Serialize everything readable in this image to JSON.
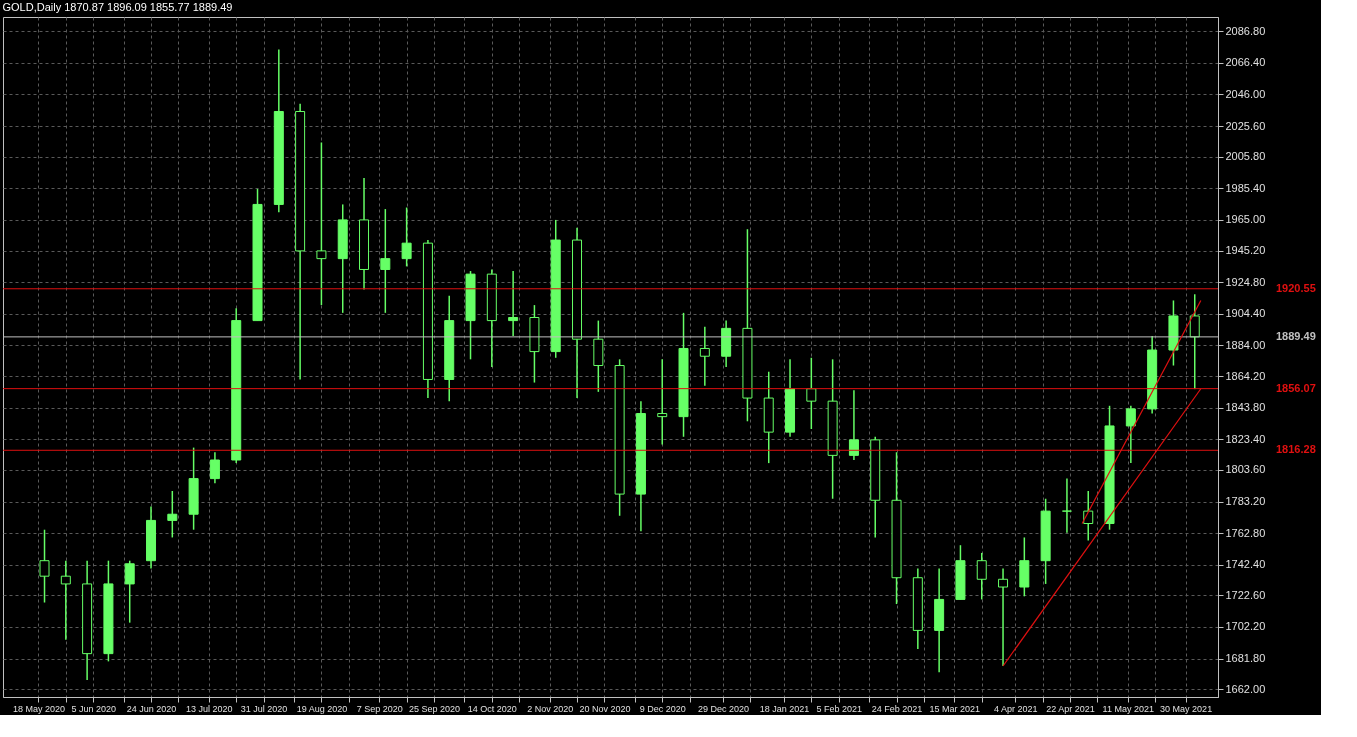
{
  "chart_data": {
    "type": "candlestick",
    "title": "GOLD,Daily  1870.87 1896.09 1855.77 1889.49",
    "color": "#66ff66",
    "x": [
      "2020-05-20",
      "2020-05-27",
      "2020-06-03",
      "2020-06-10",
      "2020-06-17",
      "2020-06-24",
      "2020-07-01",
      "2020-07-08",
      "2020-07-15",
      "2020-07-22",
      "2020-07-29",
      "2020-08-05",
      "2020-08-12",
      "2020-08-19",
      "2020-08-26",
      "2020-09-02",
      "2020-09-09",
      "2020-09-16",
      "2020-09-23",
      "2020-09-30",
      "2020-10-07",
      "2020-10-14",
      "2020-10-21",
      "2020-10-28",
      "2020-11-04",
      "2020-11-11",
      "2020-11-18",
      "2020-11-25",
      "2020-12-02",
      "2020-12-09",
      "2020-12-16",
      "2020-12-23",
      "2020-12-30",
      "2021-01-06",
      "2021-01-13",
      "2021-01-20",
      "2021-01-27",
      "2021-02-03",
      "2021-02-10",
      "2021-02-17",
      "2021-02-24",
      "2021-03-03",
      "2021-03-10",
      "2021-03-17",
      "2021-03-24",
      "2021-03-31",
      "2021-04-07",
      "2021-04-14",
      "2021-04-21",
      "2021-04-28",
      "2021-05-05",
      "2021-05-12",
      "2021-05-19",
      "2021-05-26",
      "2021-06-02"
    ],
    "ohlc": [
      [
        1745,
        1765,
        1718,
        1735
      ],
      [
        1735,
        1745,
        1694,
        1730
      ],
      [
        1730,
        1745,
        1668,
        1685
      ],
      [
        1685,
        1745,
        1680,
        1730
      ],
      [
        1730,
        1745,
        1705,
        1743
      ],
      [
        1745,
        1780,
        1740,
        1771
      ],
      [
        1771,
        1790,
        1760,
        1775
      ],
      [
        1775,
        1818,
        1765,
        1798
      ],
      [
        1798,
        1815,
        1795,
        1810
      ],
      [
        1810,
        1908,
        1808,
        1900
      ],
      [
        1900,
        1985,
        1900,
        1975
      ],
      [
        1975,
        2075,
        1970,
        2035
      ],
      [
        2035,
        2040,
        1862,
        1945
      ],
      [
        1945,
        2015,
        1910,
        1940
      ],
      [
        1940,
        1975,
        1905,
        1965
      ],
      [
        1965,
        1992,
        1920,
        1933
      ],
      [
        1933,
        1972,
        1905,
        1940
      ],
      [
        1940,
        1973,
        1935,
        1950
      ],
      [
        1950,
        1952,
        1850,
        1862
      ],
      [
        1862,
        1916,
        1848,
        1900
      ],
      [
        1900,
        1932,
        1875,
        1930
      ],
      [
        1930,
        1933,
        1870,
        1900
      ],
      [
        1900,
        1932,
        1890,
        1902
      ],
      [
        1902,
        1910,
        1860,
        1880
      ],
      [
        1880,
        1965,
        1876,
        1952
      ],
      [
        1952,
        1960,
        1850,
        1888
      ],
      [
        1888,
        1900,
        1854,
        1871
      ],
      [
        1871,
        1875,
        1774,
        1788
      ],
      [
        1788,
        1848,
        1764,
        1840
      ],
      [
        1840,
        1875,
        1820,
        1838
      ],
      [
        1838,
        1905,
        1825,
        1882
      ],
      [
        1882,
        1896,
        1858,
        1877
      ],
      [
        1877,
        1900,
        1870,
        1895
      ],
      [
        1895,
        1959,
        1835,
        1850
      ],
      [
        1850,
        1867,
        1808,
        1828
      ],
      [
        1828,
        1875,
        1825,
        1856
      ],
      [
        1856,
        1876,
        1830,
        1848
      ],
      [
        1848,
        1875,
        1785,
        1813
      ],
      [
        1813,
        1855,
        1810,
        1823
      ],
      [
        1823,
        1825,
        1760,
        1784
      ],
      [
        1784,
        1815,
        1717,
        1734
      ],
      [
        1734,
        1740,
        1688,
        1700
      ],
      [
        1700,
        1740,
        1673,
        1720
      ],
      [
        1720,
        1755,
        1720,
        1745
      ],
      [
        1745,
        1750,
        1720,
        1733
      ],
      [
        1733,
        1740,
        1677,
        1728
      ],
      [
        1728,
        1760,
        1722,
        1745
      ],
      [
        1745,
        1785,
        1730,
        1777
      ],
      [
        1777,
        1798,
        1763,
        1777
      ],
      [
        1777,
        1790,
        1758,
        1769
      ],
      [
        1769,
        1845,
        1765,
        1832
      ],
      [
        1832,
        1845,
        1808,
        1843
      ],
      [
        1843,
        1890,
        1840,
        1881
      ],
      [
        1881,
        1913,
        1871,
        1903
      ],
      [
        1903,
        1917,
        1855.77,
        1889.49
      ]
    ],
    "series": [
      {
        "type": "line",
        "color": "#e01010",
        "x": [
          "2021-04-26",
          "2021-06-04"
        ],
        "values": [
          1769,
          1913
        ]
      },
      {
        "type": "line",
        "color": "#e01010",
        "x": [
          "2021-03-31",
          "2021-06-04"
        ],
        "values": [
          1677,
          1856
        ]
      }
    ],
    "ref_lines": [
      {
        "axis": "y",
        "value": 1920.55,
        "label": "1920.55",
        "color": "#e01010"
      },
      {
        "axis": "y",
        "value": 1889.49,
        "label": "1889.49",
        "color": "#c0c0c0"
      },
      {
        "axis": "y",
        "value": 1856.07,
        "label": "1856.07",
        "color": "#e01010"
      },
      {
        "axis": "y",
        "value": 1816.28,
        "label": "1816.28",
        "color": "#e01010"
      }
    ],
    "xlim": [
      "2020-05-08",
      "2021-06-08"
    ],
    "xticks": [
      {
        "value": "2020-05-18",
        "label": "18 May 2020"
      },
      {
        "value": "2020-05-27",
        "label": null
      },
      {
        "value": "2020-06-05",
        "label": "5 Jun 2020"
      },
      {
        "value": "2020-06-15",
        "label": null
      },
      {
        "value": "2020-06-24",
        "label": "24 Jun 2020"
      },
      {
        "value": "2020-07-03",
        "label": null
      },
      {
        "value": "2020-07-13",
        "label": "13 Jul 2020"
      },
      {
        "value": "2020-07-22",
        "label": null
      },
      {
        "value": "2020-07-31",
        "label": "31 Jul 2020"
      },
      {
        "value": "2020-08-10",
        "label": null
      },
      {
        "value": "2020-08-19",
        "label": "19 Aug 2020"
      },
      {
        "value": "2020-08-28",
        "label": null
      },
      {
        "value": "2020-09-07",
        "label": "7 Sep 2020"
      },
      {
        "value": "2020-09-16",
        "label": null
      },
      {
        "value": "2020-09-25",
        "label": "25 Sep 2020"
      },
      {
        "value": "2020-10-05",
        "label": null
      },
      {
        "value": "2020-10-14",
        "label": "14 Oct 2020"
      },
      {
        "value": "2020-10-23",
        "label": null
      },
      {
        "value": "2020-11-02",
        "label": "2 Nov 2020"
      },
      {
        "value": "2020-11-11",
        "label": null
      },
      {
        "value": "2020-11-20",
        "label": "20 Nov 2020"
      },
      {
        "value": "2020-11-30",
        "label": null
      },
      {
        "value": "2020-12-09",
        "label": "9 Dec 2020"
      },
      {
        "value": "2020-12-18",
        "label": null
      },
      {
        "value": "2020-12-29",
        "label": "29 Dec 2020"
      },
      {
        "value": "2021-01-07",
        "label": null
      },
      {
        "value": "2021-01-18",
        "label": "18 Jan 2021"
      },
      {
        "value": "2021-01-27",
        "label": null
      },
      {
        "value": "2021-02-05",
        "label": "5 Feb 2021"
      },
      {
        "value": "2021-02-15",
        "label": null
      },
      {
        "value": "2021-02-24",
        "label": "24 Feb 2021"
      },
      {
        "value": "2021-03-05",
        "label": null
      },
      {
        "value": "2021-03-15",
        "label": "15 Mar 2021"
      },
      {
        "value": "2021-03-24",
        "label": null
      },
      {
        "value": "2021-04-04",
        "label": "4 Apr 2021"
      },
      {
        "value": "2021-04-13",
        "label": null
      },
      {
        "value": "2021-04-22",
        "label": "22 Apr 2021"
      },
      {
        "value": "2021-05-01",
        "label": null
      },
      {
        "value": "2021-05-11",
        "label": "11 May 2021"
      },
      {
        "value": "2021-05-20",
        "label": null
      },
      {
        "value": "2021-05-30",
        "label": "30 May 2021"
      }
    ],
    "ylim": [
      1657,
      2096
    ],
    "yticks": [
      {
        "value": 1662,
        "label": "1662.00"
      },
      {
        "value": 1681.8,
        "label": "1681.80"
      },
      {
        "value": 1702.2,
        "label": "1702.20"
      },
      {
        "value": 1722.6,
        "label": "1722.60"
      },
      {
        "value": 1742.4,
        "label": "1742.40"
      },
      {
        "value": 1762.8,
        "label": "1762.80"
      },
      {
        "value": 1783.2,
        "label": "1783.20"
      },
      {
        "value": 1803.6,
        "label": "1803.60"
      },
      {
        "value": 1823.4,
        "label": "1823.40"
      },
      {
        "value": 1843.8,
        "label": "1843.80"
      },
      {
        "value": 1864.2,
        "label": "1864.20"
      },
      {
        "value": 1884,
        "label": "1884.00"
      },
      {
        "value": 1904.4,
        "label": "1904.40"
      },
      {
        "value": 1924.8,
        "label": "1924.80"
      },
      {
        "value": 1945.2,
        "label": "1945.20"
      },
      {
        "value": 1965,
        "label": "1965.00"
      },
      {
        "value": 1985.4,
        "label": "1985.40"
      },
      {
        "value": 2005.8,
        "label": "2005.80"
      },
      {
        "value": 2025.6,
        "label": "2025.60"
      },
      {
        "value": 2046,
        "label": "2046.00"
      },
      {
        "value": 2066.4,
        "label": "2066.40"
      },
      {
        "value": 2086.8,
        "label": "2086.80"
      }
    ],
    "grid": true
  }
}
